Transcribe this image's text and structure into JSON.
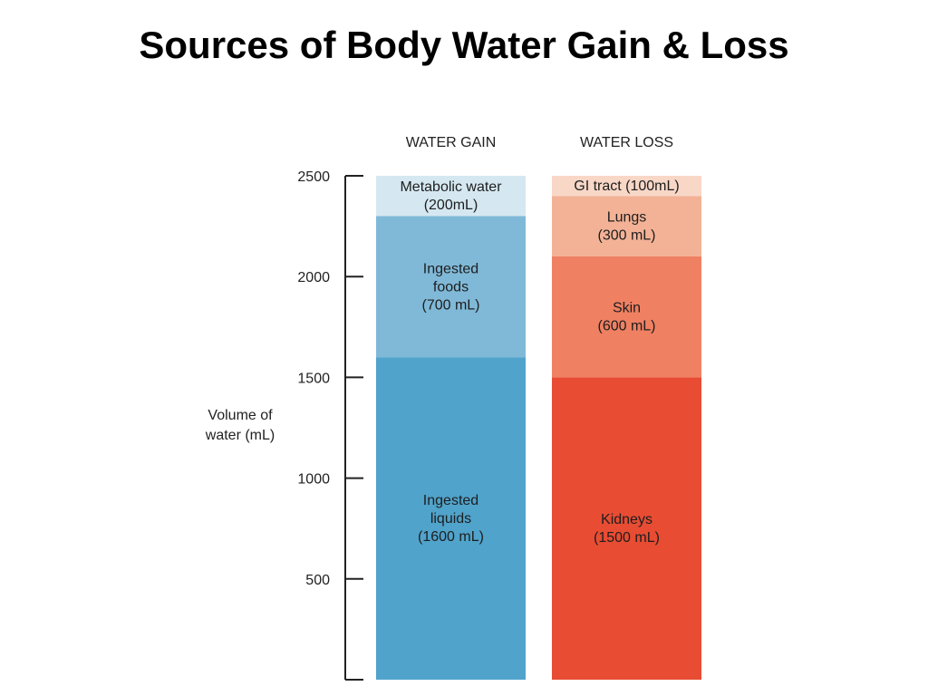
{
  "title": "Sources of Body Water Gain & Loss",
  "chart_data": {
    "type": "bar",
    "stacked": true,
    "ylabel": [
      "Volume of",
      "water (mL)"
    ],
    "ylim": [
      0,
      2500
    ],
    "yticks": [
      2500,
      2000,
      1500,
      1000,
      500
    ],
    "grid": false,
    "columns": [
      {
        "label": "WATER GAIN",
        "segments": [
          {
            "lines": [
              "Ingested",
              "liquids",
              "(1600 mL)"
            ],
            "value": 1600,
            "color": "#50a3cb"
          },
          {
            "lines": [
              "Ingested",
              "foods",
              "(700 mL)"
            ],
            "value": 700,
            "color": "#80b9d8"
          },
          {
            "lines": [
              "Metabolic water",
              "(200mL)"
            ],
            "value": 200,
            "color": "#d5e8f1"
          }
        ]
      },
      {
        "label": "WATER LOSS",
        "segments": [
          {
            "lines": [
              "Kidneys",
              "(1500 mL)"
            ],
            "value": 1500,
            "color": "#e84c33"
          },
          {
            "lines": [
              "Skin",
              "(600 mL)"
            ],
            "value": 600,
            "color": "#ef8062"
          },
          {
            "lines": [
              "Lungs",
              "(300 mL)"
            ],
            "value": 300,
            "color": "#f3b296"
          },
          {
            "lines": [
              "GI tract (100mL)"
            ],
            "value": 100,
            "color": "#f8d7c7"
          }
        ]
      }
    ]
  }
}
